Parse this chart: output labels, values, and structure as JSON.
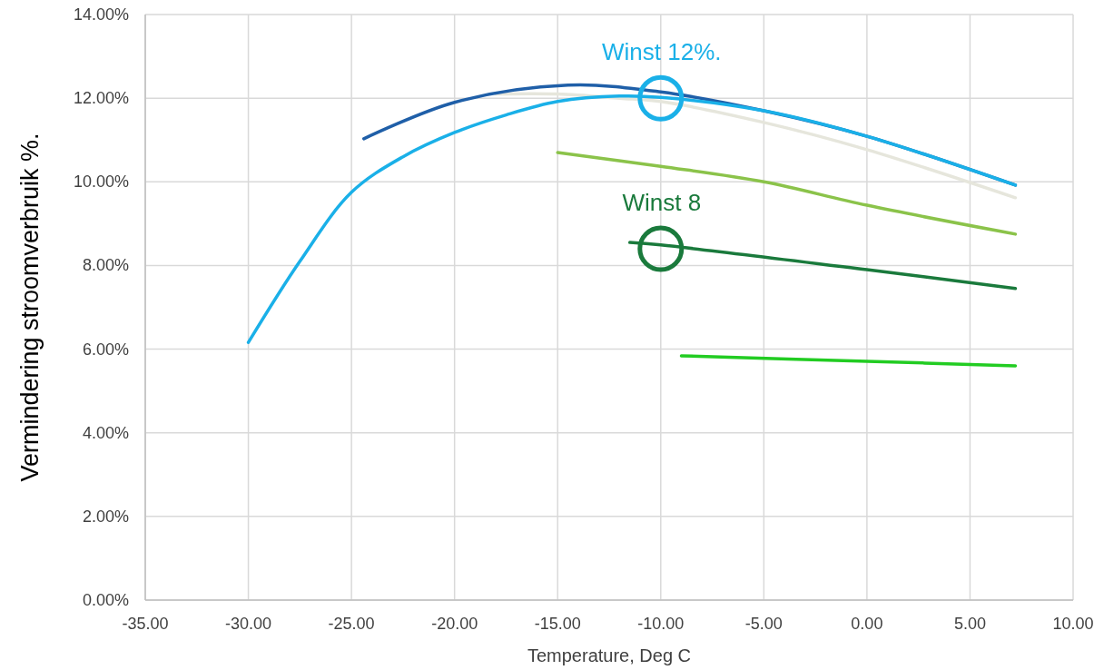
{
  "chart_data": {
    "type": "line",
    "xlabel": "Temperature, Deg C",
    "ylabel": "Vermindering stroomverbruik %.",
    "xlim": [
      -35,
      10
    ],
    "ylim": [
      0,
      14
    ],
    "xticks": [
      {
        "value": -35,
        "label": "-35.00"
      },
      {
        "value": -30,
        "label": "-30.00"
      },
      {
        "value": -25,
        "label": "-25.00"
      },
      {
        "value": -20,
        "label": "-20.00"
      },
      {
        "value": -15,
        "label": "-15.00"
      },
      {
        "value": -10,
        "label": "-10.00"
      },
      {
        "value": -5,
        "label": "-5.00"
      },
      {
        "value": 0,
        "label": "0.00"
      },
      {
        "value": 5,
        "label": "5.00"
      },
      {
        "value": 10,
        "label": "10.00"
      }
    ],
    "yticks": [
      {
        "value": 0,
        "label": "0.00%"
      },
      {
        "value": 2,
        "label": "2.00%"
      },
      {
        "value": 4,
        "label": "4.00%"
      },
      {
        "value": 6,
        "label": "6.00%"
      },
      {
        "value": 8,
        "label": "8.00%"
      },
      {
        "value": 10,
        "label": "10.00%"
      },
      {
        "value": 12,
        "label": "12.00%"
      },
      {
        "value": 14,
        "label": "14.00%"
      }
    ],
    "grid": true,
    "marker": "none",
    "line_style": "solid",
    "series": [
      {
        "color": "#e6e6dc",
        "x": [
          -18,
          -15,
          -12,
          -10,
          -5,
          0,
          7.2
        ],
        "values": [
          12.1,
          12.1,
          12.0,
          11.92,
          11.42,
          10.77,
          9.62
        ]
      },
      {
        "color": "#8bc34a",
        "x": [
          -15,
          -10,
          -5,
          0,
          7.2
        ],
        "values": [
          10.7,
          10.37,
          10.0,
          9.44,
          8.75
        ]
      },
      {
        "color": "#1a7a3c",
        "x": [
          -11.5,
          -10,
          0,
          7.2
        ],
        "values": [
          8.55,
          8.49,
          7.9,
          7.45
        ]
      },
      {
        "color": "#22cc22",
        "x": [
          -9,
          0,
          7.2
        ],
        "values": [
          5.84,
          5.71,
          5.6
        ]
      },
      {
        "color": "#1f5fa8",
        "x": [
          -24.4,
          -20,
          -14.5,
          -10,
          -5,
          0,
          7.2
        ],
        "values": [
          11.03,
          11.9,
          12.31,
          12.15,
          11.7,
          11.09,
          9.92
        ]
      },
      {
        "color": "#1ab0e8",
        "x": [
          -30,
          -27.5,
          -25,
          -22.5,
          -20,
          -17.5,
          -15,
          -12,
          -10,
          -5,
          0,
          7.2
        ],
        "values": [
          6.16,
          8.1,
          9.75,
          10.6,
          11.18,
          11.6,
          11.92,
          12.05,
          12.02,
          11.7,
          11.09,
          9.92
        ]
      }
    ],
    "annotations": [
      {
        "text": "Winst 12%.",
        "x": -10,
        "y": 12
      },
      {
        "text": "Winst 8",
        "x": -10,
        "y": 8.4
      }
    ]
  }
}
